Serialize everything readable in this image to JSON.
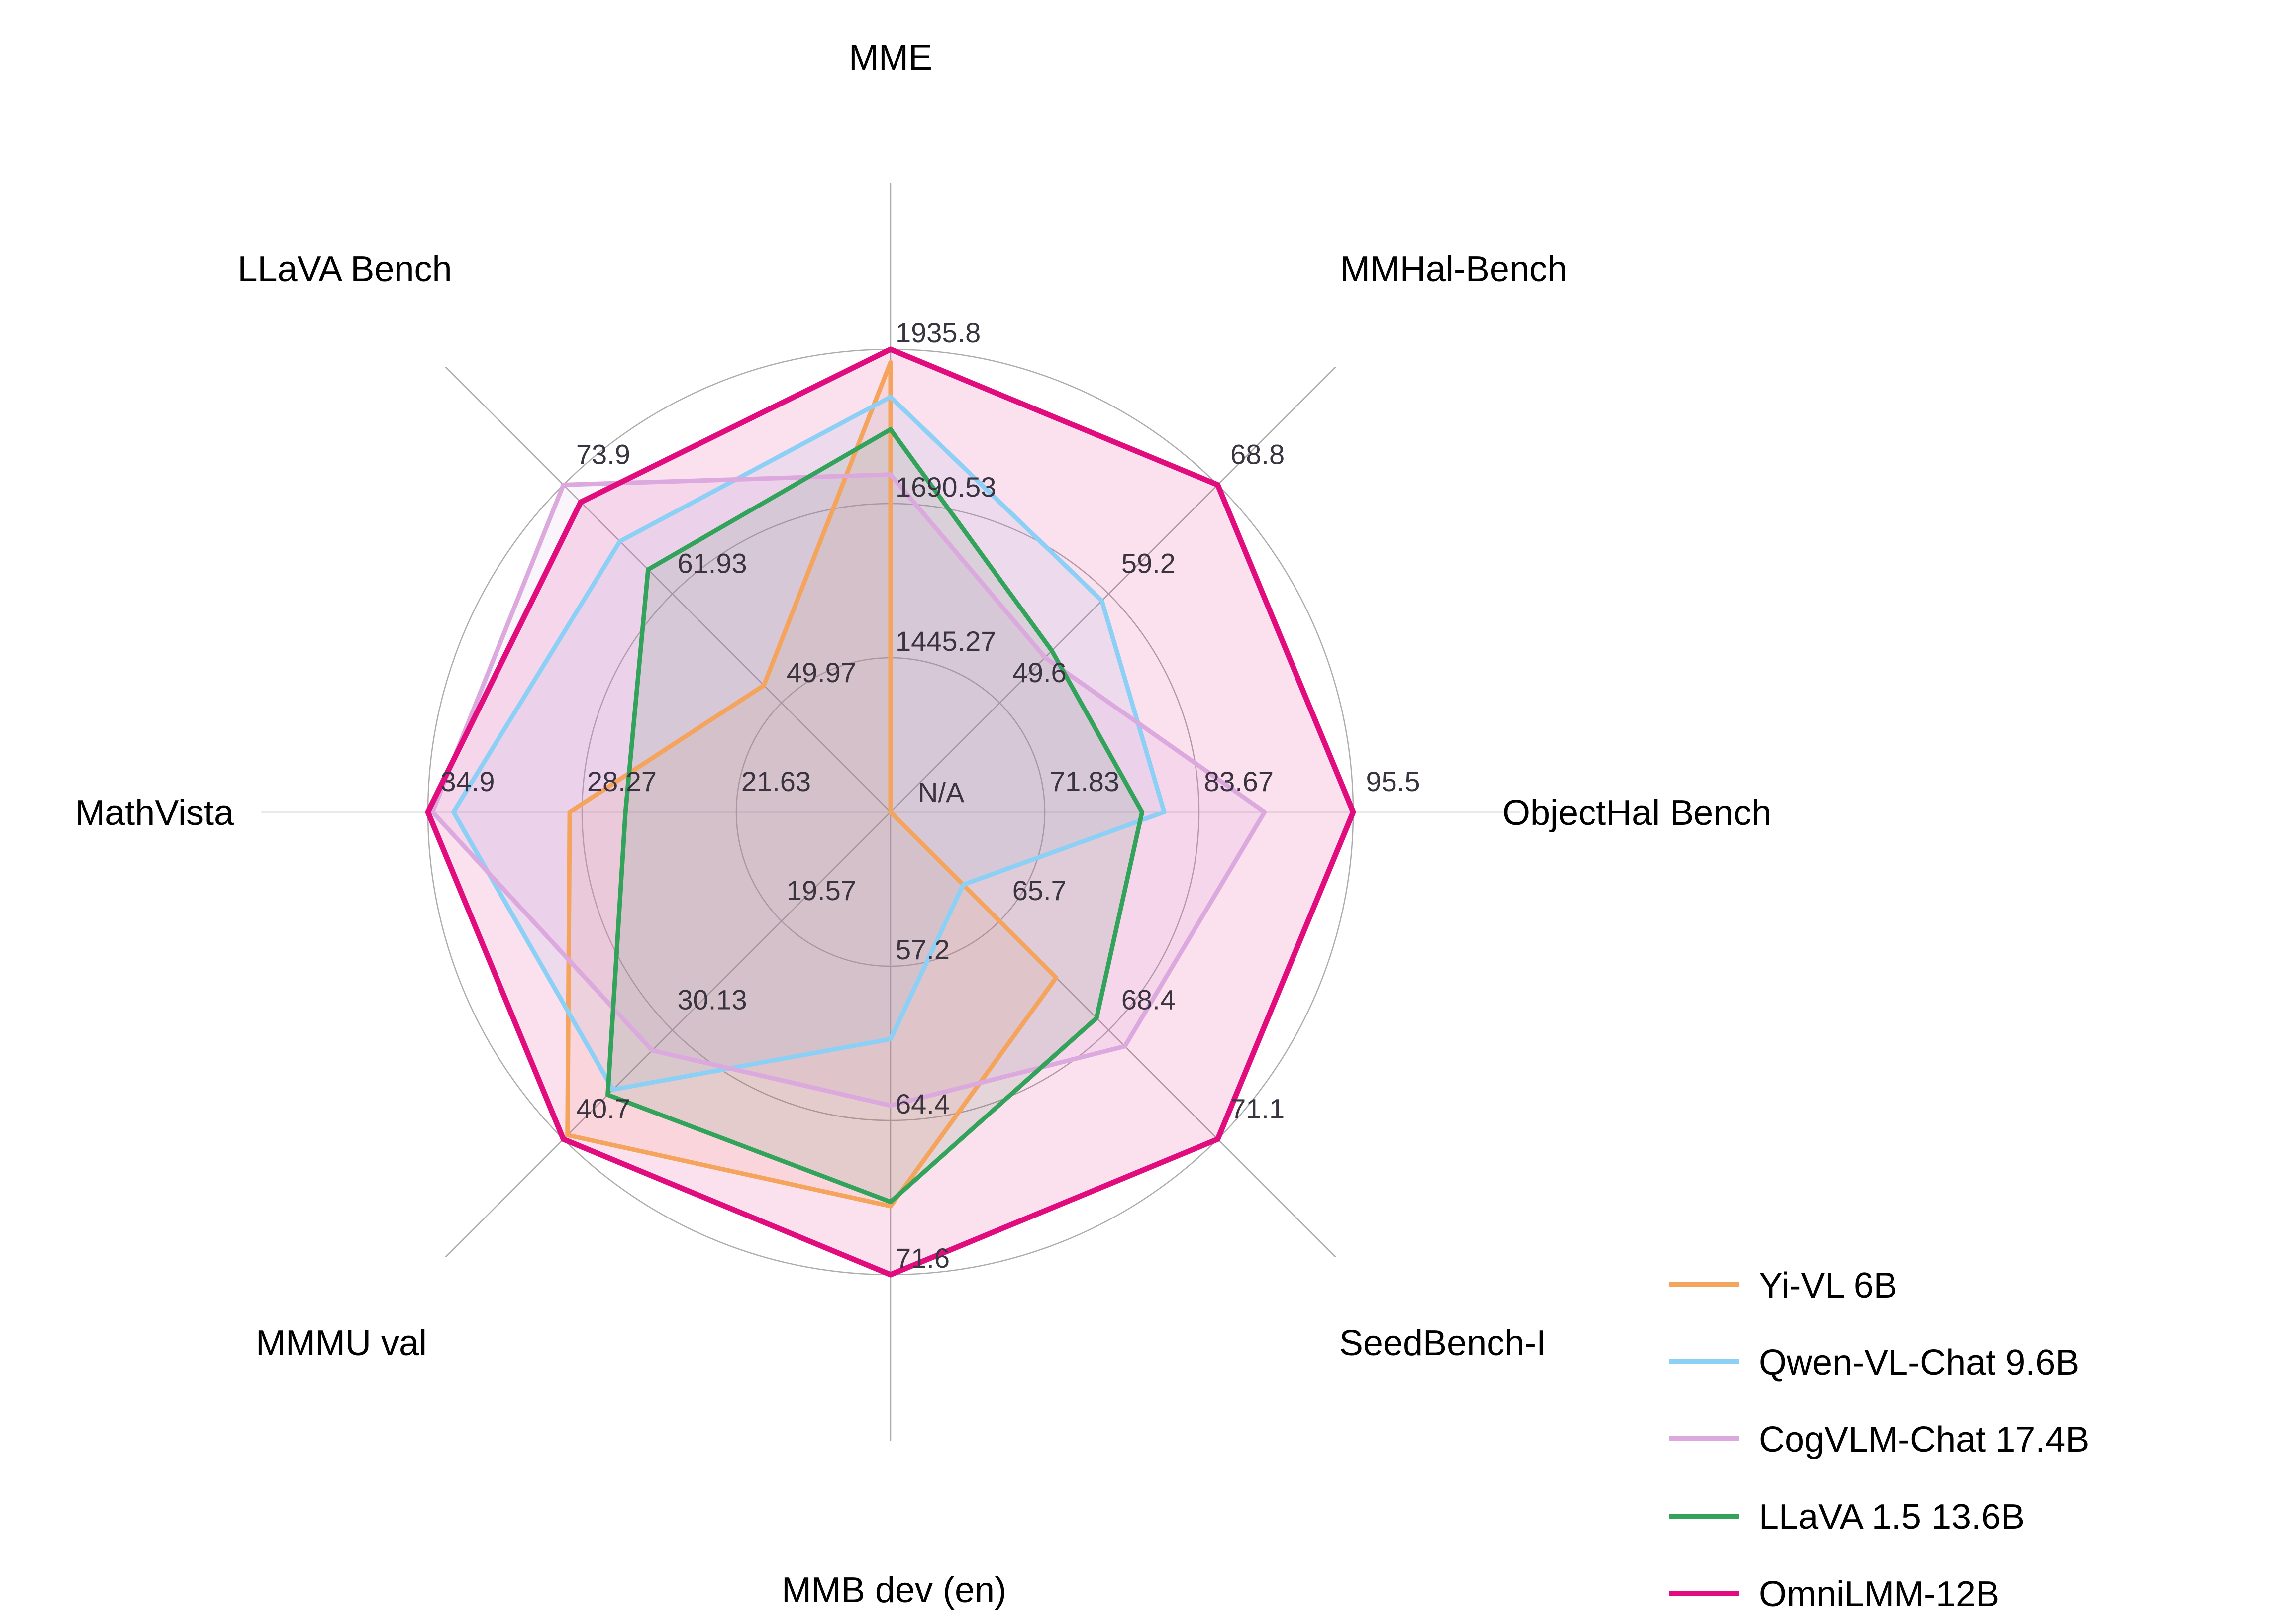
{
  "figure": {
    "background": "#ffffff",
    "grid_color": "#ADADAD",
    "tick_color": "#3A3340",
    "center_label": "N/A"
  },
  "chart_data": {
    "type": "radar",
    "title": "",
    "grid": "on",
    "rings": 3,
    "legend_position": "lower right",
    "axes": [
      {
        "label": "MME",
        "angle_deg": 90,
        "min": 1200,
        "max": 1935.8,
        "ticks": [
          "1445.27",
          "1690.53",
          "1935.8"
        ],
        "tick_values": [
          1445.27,
          1690.53,
          1935.8
        ]
      },
      {
        "label": "MMHal-Bench",
        "angle_deg": 45,
        "min": 40,
        "max": 68.8,
        "ticks": [
          "49.6",
          "59.2",
          "68.8"
        ],
        "tick_values": [
          49.6,
          59.2,
          68.8
        ]
      },
      {
        "label": "ObjectHal Bench",
        "angle_deg": 0,
        "min": 60,
        "max": 95.5,
        "ticks": [
          "71.83",
          "83.67",
          "95.5"
        ],
        "tick_values": [
          71.83,
          83.67,
          95.5
        ]
      },
      {
        "label": "SeedBench-I",
        "angle_deg": -45,
        "min": 63,
        "max": 71.1,
        "ticks": [
          "65.7",
          "68.4",
          "71.1"
        ],
        "tick_values": [
          65.7,
          68.4,
          71.1
        ]
      },
      {
        "label": "MMB dev (en)",
        "angle_deg": -90,
        "min": 50,
        "max": 71.6,
        "ticks": [
          "57.2",
          "64.4",
          "71.6"
        ],
        "tick_values": [
          57.2,
          64.4,
          71.6
        ]
      },
      {
        "label": "MMMU val",
        "angle_deg": -135,
        "min": 9,
        "max": 40.7,
        "ticks": [
          "19.57",
          "30.13",
          "40.7"
        ],
        "tick_values": [
          19.57,
          30.13,
          40.7
        ]
      },
      {
        "label": "MathVista",
        "angle_deg": 180,
        "min": 15,
        "max": 34.9,
        "ticks": [
          "21.63",
          "28.27",
          "34.9"
        ],
        "tick_values": [
          21.63,
          28.27,
          34.9
        ]
      },
      {
        "label": "LLaVA Bench",
        "angle_deg": 135,
        "min": 38,
        "max": 73.9,
        "ticks": [
          "49.97",
          "61.93",
          "73.9"
        ],
        "tick_values": [
          49.97,
          61.93,
          73.9
        ]
      }
    ],
    "center_label": "N/A",
    "series": [
      {
        "name": "Yi-VL 6B",
        "color": "#F5A45D",
        "line_width": 9,
        "values": [
          1915.1,
          null,
          null,
          67.1,
          68.4,
          40.3,
          28.8,
          51.9
        ]
      },
      {
        "name": "Qwen-VL-Chat 9.6B",
        "color": "#8DD0F6",
        "line_width": 9,
        "values": [
          1860.0,
          58.6,
          81.0,
          64.8,
          60.6,
          35.9,
          33.8,
          67.7
        ]
      },
      {
        "name": "CogVLM-Chat 17.4B",
        "color": "#DCA9DE",
        "line_width": 9,
        "values": [
          1736.6,
          53.6,
          88.7,
          68.8,
          63.7,
          32.1,
          34.7,
          73.9
        ]
      },
      {
        "name": "LLaVA 1.5 13.6B",
        "color": "#33A35C",
        "line_width": 9,
        "values": [
          1808.4,
          54.2,
          79.3,
          68.1,
          68.2,
          36.4,
          26.4,
          64.6
        ]
      },
      {
        "name": "OmniLMM-12B",
        "color": "#E10C7E",
        "line_width": 11,
        "values": [
          1935.8,
          68.8,
          95.5,
          71.1,
          71.6,
          40.7,
          34.9,
          72.0
        ]
      }
    ],
    "fill_opacity": 0.13
  }
}
